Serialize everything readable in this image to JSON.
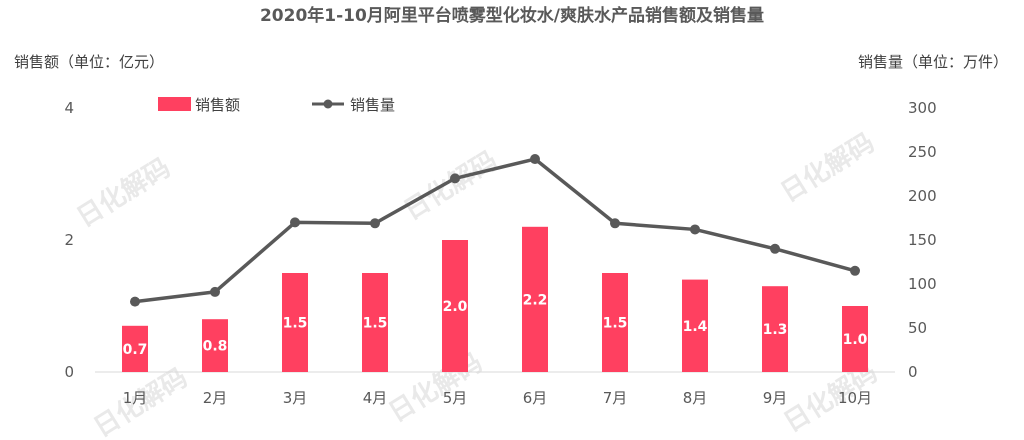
{
  "chart_data": {
    "type": "bar",
    "title": "2020年1-10月阿里平台喷雾型化妆水/爽肤水产品销售额及销售量",
    "ylabel_left": "销售额（单位：亿元）",
    "ylabel_right": "销售量（单位：万件）",
    "categories": [
      "1月",
      "2月",
      "3月",
      "4月",
      "5月",
      "6月",
      "7月",
      "8月",
      "9月",
      "10月"
    ],
    "series": [
      {
        "name": "销售额",
        "type": "bar",
        "axis": "left",
        "values": [
          0.7,
          0.8,
          1.5,
          1.5,
          2.0,
          2.2,
          1.5,
          1.4,
          1.3,
          1.0
        ],
        "labels": [
          "0.7",
          "0.8",
          "1.5",
          "1.5",
          "2.0",
          "2.2",
          "1.5",
          "1.4",
          "1.3",
          "1.0"
        ]
      },
      {
        "name": "销售量",
        "type": "line",
        "axis": "right",
        "values": [
          80,
          91,
          170,
          169,
          220,
          242,
          169,
          162,
          140,
          115
        ]
      }
    ],
    "ylim_left": [
      0,
      4
    ],
    "yticks_left": [
      "0",
      "2",
      "4"
    ],
    "ylim_right": [
      0,
      300
    ],
    "yticks_right": [
      "0",
      "50",
      "100",
      "150",
      "200",
      "250",
      "300"
    ],
    "legend_position": "top",
    "grid": false,
    "colors": {
      "bar": "#ff4060",
      "line": "#595959",
      "axis": "#d9d9d9"
    }
  },
  "watermark": {
    "text": "日化解码"
  }
}
